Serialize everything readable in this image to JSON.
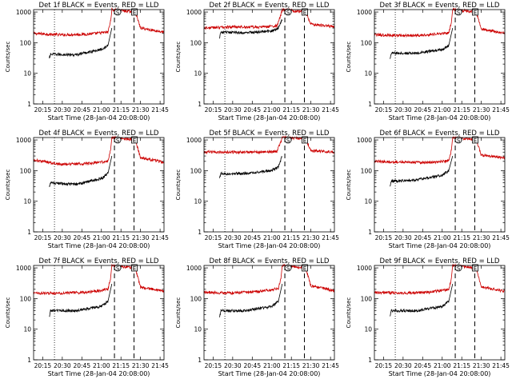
{
  "figure": {
    "background": "#ffffff"
  },
  "chart_data": [
    {
      "type": "line",
      "title": "Det 1f BLACK = Events, RED = LLD",
      "xlabel": "Start Time (28-Jan-04 20:08:00)",
      "ylabel": "Counts/sec",
      "xlim": [
        "20:08",
        "21:48"
      ],
      "ylim": [
        1,
        1200
      ],
      "yscale": "log",
      "grid": false,
      "xticks": [
        "20:15",
        "20:30",
        "20:45",
        "21:00",
        "21:15",
        "21:30",
        "21:45"
      ],
      "yticks": [
        "1",
        "10",
        "100",
        "1000"
      ],
      "markers": {
        "dotted": [
          "20:24"
        ],
        "dashed": [
          "21:10",
          "21:25"
        ],
        "labels": [
          "S",
          "E"
        ]
      },
      "series": [
        {
          "color": "#cc0000",
          "x": [
            "20:08",
            "20:30",
            "20:50",
            "21:05",
            "21:07",
            "21:08",
            "21:26",
            "21:30",
            "21:48"
          ],
          "values": [
            200,
            180,
            190,
            220,
            500,
            1200,
            1000,
            300,
            220
          ]
        },
        {
          "color": "#000000",
          "x": [
            "20:20",
            "20:21",
            "20:40",
            "21:00",
            "21:05",
            "21:08"
          ],
          "values": [
            30,
            42,
            40,
            60,
            80,
            300
          ]
        }
      ]
    },
    {
      "type": "line",
      "title": "Det 2f BLACK = Events, RED = LLD",
      "xlabel": "Start Time (28-Jan-04 20:08:00)",
      "ylabel": "Counts/sec",
      "xlim": [
        "20:08",
        "21:48"
      ],
      "ylim": [
        1,
        1200
      ],
      "yscale": "log",
      "grid": false,
      "xticks": [
        "20:15",
        "20:30",
        "20:45",
        "21:00",
        "21:15",
        "21:30",
        "21:45"
      ],
      "yticks": [
        "1",
        "10",
        "100",
        "1000"
      ],
      "markers": {
        "dotted": [
          "20:24"
        ],
        "dashed": [
          "21:10",
          "21:25"
        ],
        "labels": [
          "S",
          "E"
        ]
      },
      "series": [
        {
          "color": "#cc0000",
          "x": [
            "20:08",
            "20:30",
            "20:50",
            "21:04",
            "21:07",
            "21:08",
            "21:26",
            "21:30",
            "21:48"
          ],
          "values": [
            300,
            330,
            320,
            350,
            800,
            1200,
            1000,
            400,
            330
          ]
        },
        {
          "color": "#000000",
          "x": [
            "20:20",
            "20:21",
            "20:40",
            "21:00",
            "21:05",
            "21:08"
          ],
          "values": [
            150,
            220,
            210,
            240,
            300,
            600
          ]
        }
      ]
    },
    {
      "type": "line",
      "title": "Det 3f BLACK = Events, RED = LLD",
      "xlabel": "Start Time (28-Jan-04 20:08:00)",
      "ylabel": "Counts/sec",
      "xlim": [
        "20:08",
        "21:48"
      ],
      "ylim": [
        1,
        1200
      ],
      "yscale": "log",
      "grid": false,
      "xticks": [
        "20:15",
        "20:30",
        "20:45",
        "21:00",
        "21:15",
        "21:30",
        "21:45"
      ],
      "yticks": [
        "1",
        "10",
        "100",
        "1000"
      ],
      "markers": {
        "dotted": [
          "20:24"
        ],
        "dashed": [
          "21:10",
          "21:25"
        ],
        "labels": [
          "S",
          "E"
        ]
      },
      "series": [
        {
          "color": "#cc0000",
          "x": [
            "20:08",
            "20:30",
            "20:50",
            "21:05",
            "21:07",
            "21:08",
            "21:26",
            "21:30",
            "21:48"
          ],
          "values": [
            180,
            170,
            180,
            210,
            450,
            1200,
            1000,
            280,
            200
          ]
        },
        {
          "color": "#000000",
          "x": [
            "20:20",
            "20:21",
            "20:40",
            "21:00",
            "21:05",
            "21:08"
          ],
          "values": [
            30,
            45,
            45,
            60,
            80,
            300
          ]
        }
      ]
    },
    {
      "type": "line",
      "title": "Det 4f BLACK = Events, RED = LLD",
      "xlabel": "Start Time (28-Jan-04 20:08:00)",
      "ylabel": "Counts/sec",
      "xlim": [
        "20:08",
        "21:48"
      ],
      "ylim": [
        1,
        1200
      ],
      "yscale": "log",
      "grid": false,
      "xticks": [
        "20:15",
        "20:30",
        "20:45",
        "21:00",
        "21:15",
        "21:30",
        "21:45"
      ],
      "yticks": [
        "1",
        "10",
        "100",
        "1000"
      ],
      "markers": {
        "dotted": [
          "20:24"
        ],
        "dashed": [
          "21:10",
          "21:25"
        ],
        "labels": [
          "S",
          "E"
        ]
      },
      "series": [
        {
          "color": "#cc0000",
          "x": [
            "20:08",
            "20:30",
            "20:50",
            "21:05",
            "21:07",
            "21:08",
            "21:26",
            "21:30",
            "21:48"
          ],
          "values": [
            220,
            160,
            170,
            200,
            450,
            1200,
            1000,
            260,
            190
          ]
        },
        {
          "color": "#000000",
          "x": [
            "20:20",
            "20:21",
            "20:40",
            "21:00",
            "21:05",
            "21:08"
          ],
          "values": [
            30,
            40,
            35,
            55,
            80,
            300
          ]
        }
      ]
    },
    {
      "type": "line",
      "title": "Det 5f BLACK = Events, RED = LLD",
      "xlabel": "Start Time (28-Jan-04 20:08:00)",
      "ylabel": "Counts/sec",
      "xlim": [
        "20:08",
        "21:48"
      ],
      "ylim": [
        1,
        1200
      ],
      "yscale": "log",
      "grid": false,
      "xticks": [
        "20:15",
        "20:30",
        "20:45",
        "21:00",
        "21:15",
        "21:30",
        "21:45"
      ],
      "yticks": [
        "1",
        "10",
        "100",
        "1000"
      ],
      "markers": {
        "dotted": [
          "20:24"
        ],
        "dashed": [
          "21:10",
          "21:25"
        ],
        "labels": [
          "S",
          "E"
        ]
      },
      "series": [
        {
          "color": "#cc0000",
          "x": [
            "20:08",
            "20:30",
            "20:50",
            "21:04",
            "21:07",
            "21:08",
            "21:26",
            "21:30",
            "21:48"
          ],
          "values": [
            400,
            400,
            400,
            420,
            900,
            1200,
            1100,
            450,
            400
          ]
        },
        {
          "color": "#000000",
          "x": [
            "20:20",
            "20:21",
            "20:40",
            "21:00",
            "21:05",
            "21:08"
          ],
          "values": [
            60,
            80,
            80,
            100,
            130,
            300
          ]
        }
      ]
    },
    {
      "type": "line",
      "title": "Det 6f BLACK = Events, RED = LLD",
      "xlabel": "Start Time (28-Jan-04 20:08:00)",
      "ylabel": "Counts/sec",
      "xlim": [
        "20:08",
        "21:48"
      ],
      "ylim": [
        1,
        1200
      ],
      "yscale": "log",
      "grid": false,
      "xticks": [
        "20:15",
        "20:30",
        "20:45",
        "21:00",
        "21:15",
        "21:30",
        "21:45"
      ],
      "yticks": [
        "1",
        "10",
        "100",
        "1000"
      ],
      "markers": {
        "dotted": [
          "20:24"
        ],
        "dashed": [
          "21:10",
          "21:25"
        ],
        "labels": [
          "S",
          "E"
        ]
      },
      "series": [
        {
          "color": "#cc0000",
          "x": [
            "20:08",
            "20:30",
            "20:50",
            "21:05",
            "21:07",
            "21:08",
            "21:26",
            "21:30",
            "21:48"
          ],
          "values": [
            200,
            190,
            180,
            210,
            450,
            1200,
            1000,
            320,
            260
          ]
        },
        {
          "color": "#000000",
          "x": [
            "20:20",
            "20:21",
            "20:40",
            "21:00",
            "21:05",
            "21:08"
          ],
          "values": [
            30,
            45,
            50,
            70,
            100,
            300
          ]
        }
      ]
    },
    {
      "type": "line",
      "title": "Det 7f BLACK = Events, RED = LLD",
      "xlabel": "Start Time (28-Jan-04 20:08:00)",
      "ylabel": "Counts/sec",
      "xlim": [
        "20:08",
        "21:48"
      ],
      "ylim": [
        1,
        1200
      ],
      "yscale": "log",
      "grid": false,
      "xticks": [
        "20:15",
        "20:30",
        "20:45",
        "21:00",
        "21:15",
        "21:30",
        "21:45"
      ],
      "yticks": [
        "1",
        "10",
        "100",
        "1000"
      ],
      "markers": {
        "dotted": [
          "20:24"
        ],
        "dashed": [
          "21:10",
          "21:25"
        ],
        "labels": [
          "S",
          "E"
        ]
      },
      "series": [
        {
          "color": "#cc0000",
          "x": [
            "20:08",
            "20:30",
            "20:50",
            "21:05",
            "21:07",
            "21:08",
            "21:26",
            "21:30",
            "21:48"
          ],
          "values": [
            150,
            150,
            160,
            200,
            450,
            1200,
            1000,
            230,
            180
          ]
        },
        {
          "color": "#000000",
          "x": [
            "20:20",
            "20:21",
            "20:40",
            "21:00",
            "21:05",
            "21:08"
          ],
          "values": [
            25,
            40,
            40,
            55,
            80,
            300
          ]
        }
      ]
    },
    {
      "type": "line",
      "title": "Det 8f BLACK = Events, RED = LLD",
      "xlabel": "Start Time (28-Jan-04 20:08:00)",
      "ylabel": "Counts/sec",
      "xlim": [
        "20:08",
        "21:48"
      ],
      "ylim": [
        1,
        1200
      ],
      "yscale": "log",
      "grid": false,
      "xticks": [
        "20:15",
        "20:30",
        "20:45",
        "21:00",
        "21:15",
        "21:30",
        "21:45"
      ],
      "yticks": [
        "1",
        "10",
        "100",
        "1000"
      ],
      "markers": {
        "dotted": [
          "20:24"
        ],
        "dashed": [
          "21:10",
          "21:25"
        ],
        "labels": [
          "S",
          "E"
        ]
      },
      "series": [
        {
          "color": "#cc0000",
          "x": [
            "20:08",
            "20:30",
            "20:50",
            "21:05",
            "21:07",
            "21:08",
            "21:26",
            "21:30",
            "21:48"
          ],
          "values": [
            160,
            150,
            170,
            210,
            450,
            1200,
            1000,
            260,
            180
          ]
        },
        {
          "color": "#000000",
          "x": [
            "20:20",
            "20:21",
            "20:40",
            "21:00",
            "21:05",
            "21:08"
          ],
          "values": [
            25,
            40,
            40,
            55,
            80,
            300
          ]
        }
      ]
    },
    {
      "type": "line",
      "title": "Det 9f BLACK = Events, RED = LLD",
      "xlabel": "Start Time (28-Jan-04 20:08:00)",
      "ylabel": "Counts/sec",
      "xlim": [
        "20:08",
        "21:48"
      ],
      "ylim": [
        1,
        1200
      ],
      "yscale": "log",
      "grid": false,
      "xticks": [
        "20:15",
        "20:30",
        "20:45",
        "21:00",
        "21:15",
        "21:30",
        "21:45"
      ],
      "yticks": [
        "1",
        "10",
        "100",
        "1000"
      ],
      "markers": {
        "dotted": [
          "20:24"
        ],
        "dashed": [
          "21:10",
          "21:25"
        ],
        "labels": [
          "S",
          "E"
        ]
      },
      "series": [
        {
          "color": "#cc0000",
          "x": [
            "20:08",
            "20:30",
            "20:50",
            "21:05",
            "21:07",
            "21:08",
            "21:26",
            "21:30",
            "21:48"
          ],
          "values": [
            160,
            150,
            160,
            200,
            450,
            1200,
            1000,
            240,
            170
          ]
        },
        {
          "color": "#000000",
          "x": [
            "20:20",
            "20:21",
            "20:40",
            "21:00",
            "21:05",
            "21:08"
          ],
          "values": [
            25,
            40,
            40,
            55,
            80,
            300
          ]
        }
      ]
    }
  ]
}
